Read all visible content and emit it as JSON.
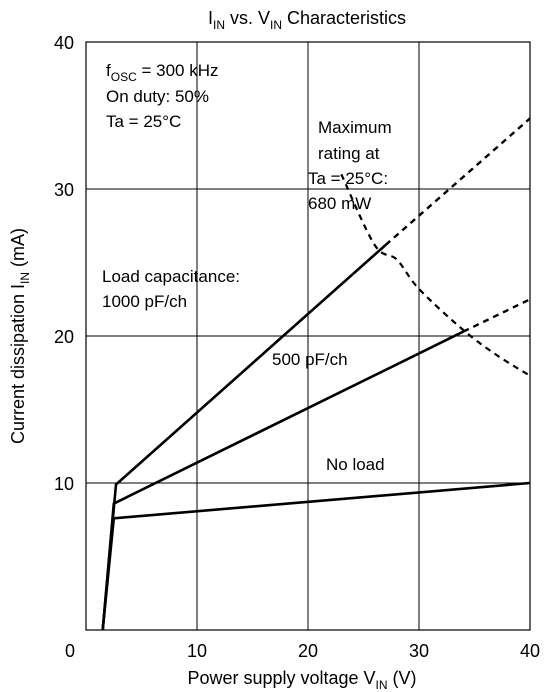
{
  "chart_data": {
    "type": "line",
    "title": {
      "main": "I",
      "sub1": "IN",
      "mid": " vs. V",
      "sub2": "IN",
      "tail": " Characteristics"
    },
    "xlabel": {
      "main": "Power supply voltage V",
      "sub": "IN",
      "tail": " (V)"
    },
    "ylabel": {
      "main": "Current dissipation I",
      "sub": "IN",
      "tail": " (mA)"
    },
    "xlim": [
      0,
      40
    ],
    "ylim": [
      0,
      40
    ],
    "x_ticks": [
      {
        "value": 10,
        "label": "10"
      },
      {
        "value": 20,
        "label": "20"
      },
      {
        "value": 30,
        "label": "30"
      },
      {
        "value": 40,
        "label": "40"
      }
    ],
    "y_ticks": [
      {
        "value": 10,
        "label": "10"
      },
      {
        "value": 20,
        "label": "20"
      },
      {
        "value": 30,
        "label": "30"
      },
      {
        "value": 40,
        "label": "40"
      }
    ],
    "origin_label": "0",
    "grid": true,
    "conditions": {
      "fosc_main": "f",
      "fosc_sub": "OSC",
      "fosc_tail": " = 300 kHz",
      "duty": "On duty: 50%",
      "ta": "Ta = 25°C"
    },
    "series": [
      {
        "name": "1000 pF/ch",
        "label_lines": [
          "Load capacitance:",
          "1000 pF/ch"
        ],
        "solid": [
          [
            1.5,
            0
          ],
          [
            2.7,
            9.9
          ],
          [
            27,
            26.2
          ]
        ],
        "dashed": [
          [
            27,
            26.2
          ],
          [
            40,
            34.8
          ]
        ]
      },
      {
        "name": "500 pF/ch",
        "label_lines": [
          "500 pF/ch"
        ],
        "solid": [
          [
            1.5,
            0
          ],
          [
            2.5,
            8.6
          ],
          [
            34,
            20.3
          ]
        ],
        "dashed": [
          [
            34,
            20.3
          ],
          [
            40,
            22.5
          ]
        ]
      },
      {
        "name": "No load",
        "label_lines": [
          "No load"
        ],
        "solid": [
          [
            1.5,
            0
          ],
          [
            2.5,
            7.6
          ],
          [
            40,
            10.0
          ]
        ],
        "dashed": []
      }
    ],
    "max_rating_curve": {
      "label_lines": [
        "Maximum",
        "rating at",
        "Ta = 25°C:",
        "680 mW"
      ],
      "points": [
        [
          23,
          31
        ],
        [
          26,
          26.2
        ],
        [
          28,
          25.2
        ],
        [
          30,
          23.2
        ],
        [
          34,
          20.4
        ],
        [
          37,
          18.7
        ],
        [
          40,
          17.3
        ]
      ]
    }
  }
}
